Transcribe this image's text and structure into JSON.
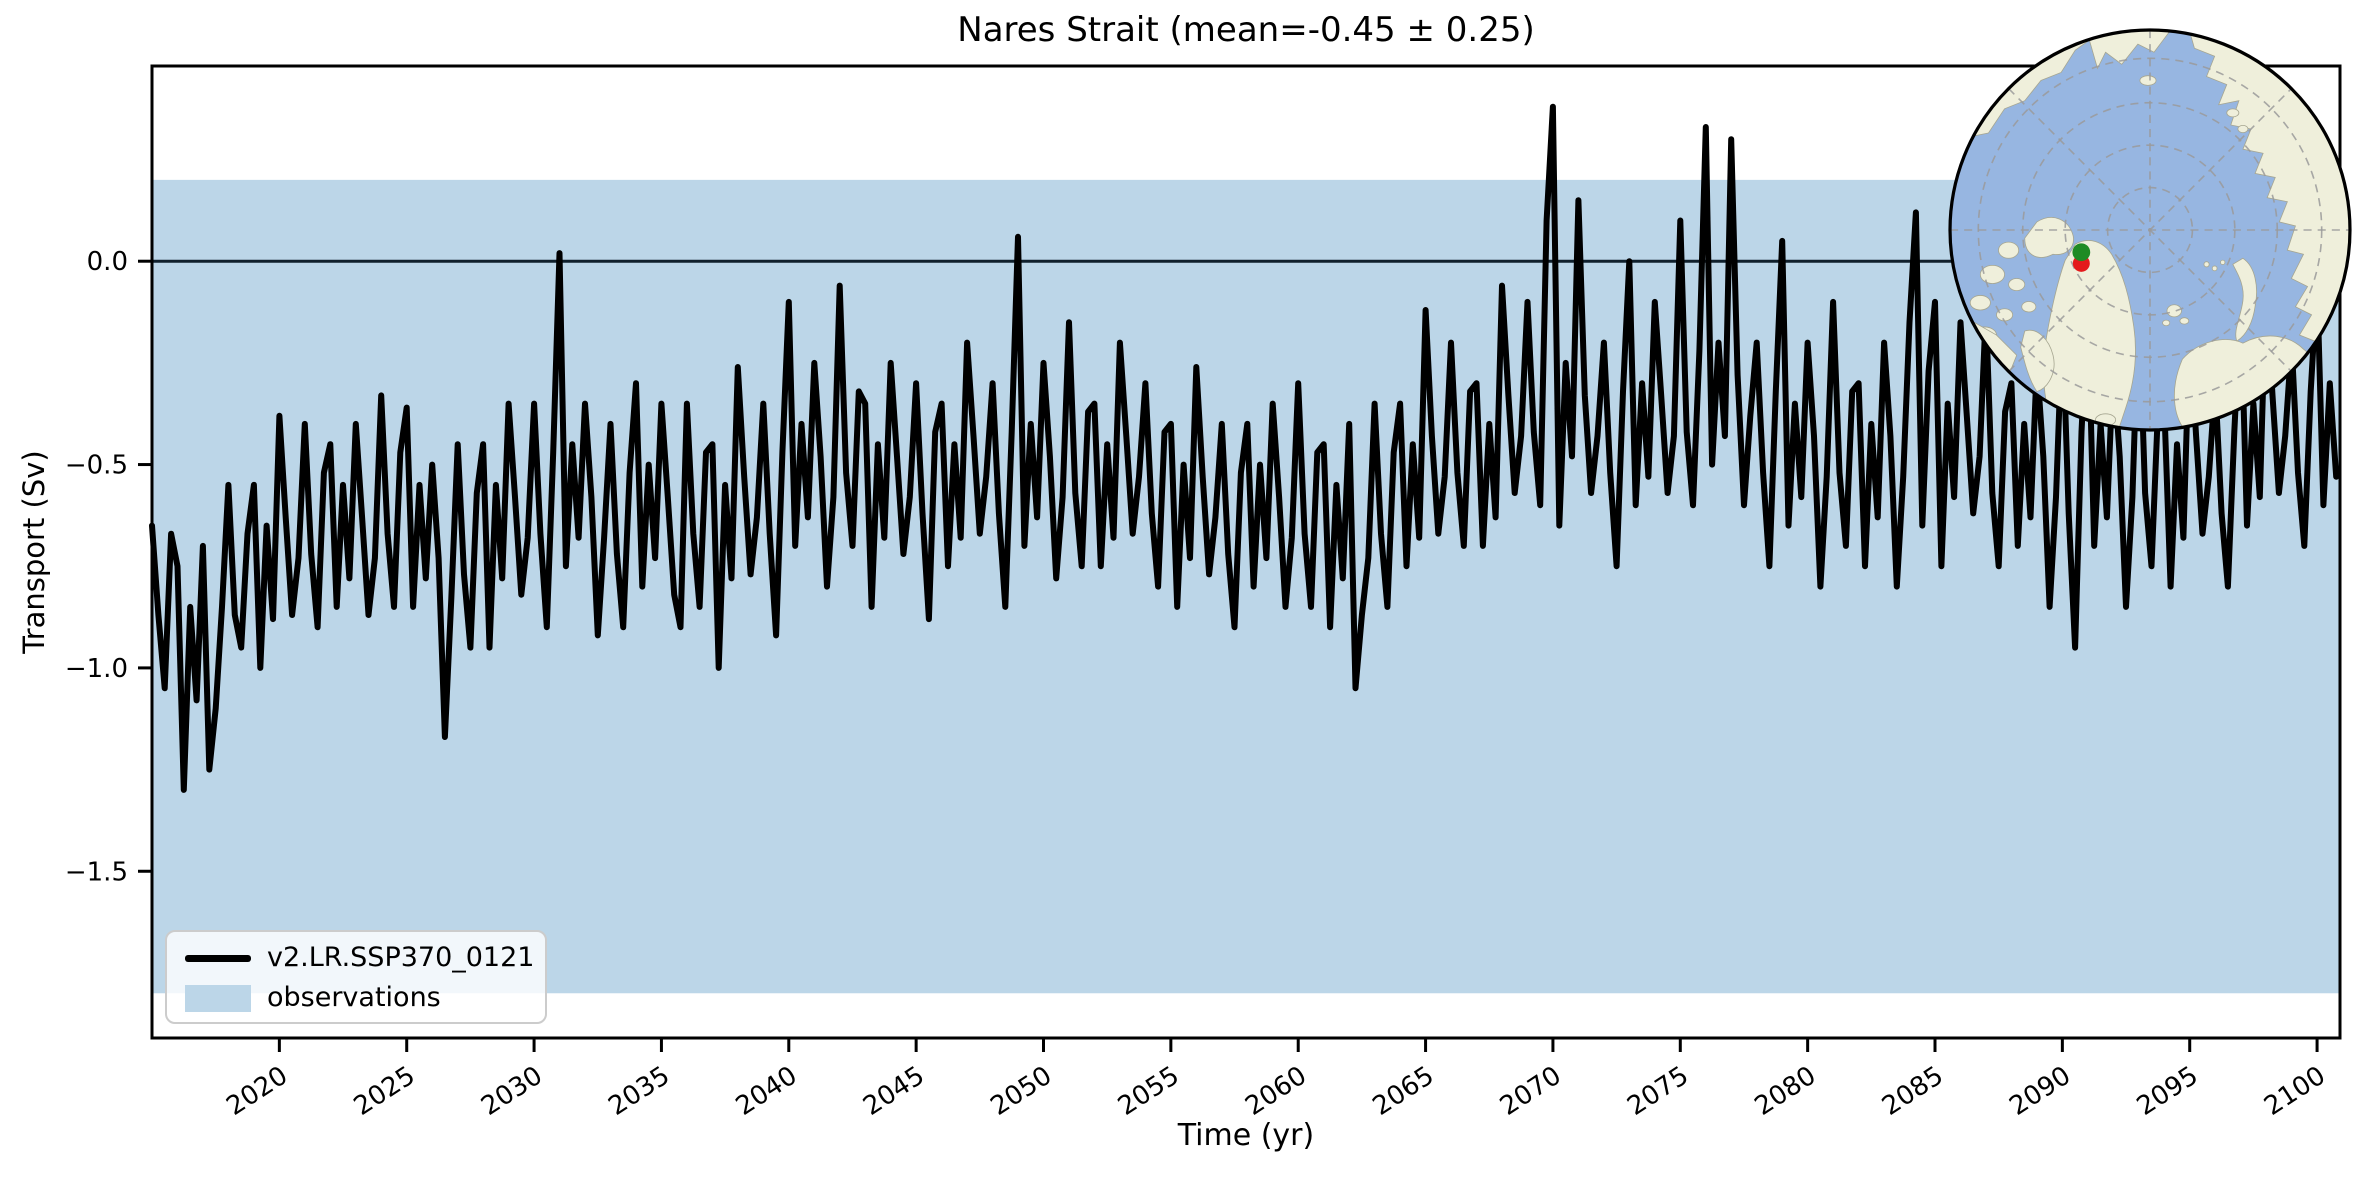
{
  "title": "Nares Strait (mean=-0.45 ± 0.25)",
  "colors": {
    "band": "#bcd6e8",
    "series": "#000000",
    "zero_line": "#10202c",
    "axis": "#000000",
    "text": "#000000",
    "legend_bg": "rgba(255,255,255,0.8)",
    "legend_border": "#cccccc",
    "map_ocean": "#97b6e1",
    "map_land": "#efefdb",
    "map_grid": "#9a9a9a",
    "marker_green": "#1f8b24",
    "marker_red": "#e41a1c"
  },
  "legend": {
    "series_label": "v2.LR.SSP370_0121",
    "band_label": "observations",
    "position": "lower left"
  },
  "inset_map": {
    "description": "Arctic polar stereographic locator map with Nares Strait marked",
    "marker_green": "#1f8b24",
    "marker_red": "#e41a1c"
  },
  "chart_data": {
    "type": "line",
    "title": "Nares Strait (mean=-0.45 ± 0.25)",
    "xlabel": "Time (yr)",
    "ylabel": "Transport (Sv)",
    "xlim": [
      2015.0,
      2100.9
    ],
    "ylim": [
      -1.91,
      0.48
    ],
    "grid": false,
    "x_ticks": [
      2020,
      2025,
      2030,
      2035,
      2040,
      2045,
      2050,
      2055,
      2060,
      2065,
      2070,
      2075,
      2080,
      2085,
      2090,
      2095,
      2100
    ],
    "x_tick_rotation": 33,
    "y_ticks": [
      0.0,
      -0.5,
      -1.0,
      -1.5
    ],
    "y_tick_labels": [
      "0.0",
      "−0.5",
      "−1.0",
      "−1.5"
    ],
    "zero_line": 0.0,
    "band": {
      "label": "observations",
      "ymin": -1.8,
      "ymax": 0.2
    },
    "series": [
      {
        "name": "v2.LR.SSP370_0121",
        "x_start": 2015.0,
        "x_step": 0.25,
        "values": [
          -0.65,
          -0.87,
          -1.05,
          -0.67,
          -0.75,
          -1.3,
          -0.85,
          -1.08,
          -0.7,
          -1.25,
          -1.1,
          -0.85,
          -0.55,
          -0.87,
          -0.95,
          -0.67,
          -0.55,
          -1.0,
          -0.65,
          -0.88,
          -0.38,
          -0.63,
          -0.87,
          -0.73,
          -0.4,
          -0.72,
          -0.9,
          -0.52,
          -0.45,
          -0.85,
          -0.55,
          -0.78,
          -0.4,
          -0.63,
          -0.87,
          -0.73,
          -0.33,
          -0.67,
          -0.85,
          -0.47,
          -0.36,
          -0.85,
          -0.55,
          -0.78,
          -0.5,
          -0.73,
          -1.17,
          -0.83,
          -0.45,
          -0.77,
          -0.95,
          -0.57,
          -0.45,
          -0.95,
          -0.55,
          -0.78,
          -0.35,
          -0.58,
          -0.82,
          -0.68,
          -0.35,
          -0.67,
          -0.9,
          -0.47,
          0.02,
          -0.75,
          -0.45,
          -0.68,
          -0.35,
          -0.58,
          -0.92,
          -0.68,
          -0.4,
          -0.72,
          -0.9,
          -0.52,
          -0.3,
          -0.8,
          -0.5,
          -0.73,
          -0.35,
          -0.58,
          -0.82,
          -0.9,
          -0.35,
          -0.67,
          -0.85,
          -0.47,
          -0.45,
          -1.0,
          -0.55,
          -0.78,
          -0.26,
          -0.53,
          -0.77,
          -0.63,
          -0.35,
          -0.67,
          -0.92,
          -0.47,
          -0.1,
          -0.7,
          -0.4,
          -0.63,
          -0.25,
          -0.48,
          -0.8,
          -0.58,
          -0.06,
          -0.52,
          -0.7,
          -0.32,
          -0.35,
          -0.85,
          -0.45,
          -0.68,
          -0.25,
          -0.48,
          -0.72,
          -0.58,
          -0.3,
          -0.62,
          -0.88,
          -0.42,
          -0.35,
          -0.75,
          -0.45,
          -0.68,
          -0.2,
          -0.43,
          -0.67,
          -0.53,
          -0.3,
          -0.62,
          -0.85,
          -0.42,
          0.06,
          -0.7,
          -0.4,
          -0.63,
          -0.25,
          -0.48,
          -0.78,
          -0.58,
          -0.15,
          -0.57,
          -0.75,
          -0.37,
          -0.35,
          -0.75,
          -0.45,
          -0.68,
          -0.2,
          -0.43,
          -0.67,
          -0.53,
          -0.3,
          -0.62,
          -0.8,
          -0.42,
          -0.4,
          -0.85,
          -0.5,
          -0.73,
          -0.26,
          -0.53,
          -0.77,
          -0.63,
          -0.4,
          -0.72,
          -0.9,
          -0.52,
          -0.4,
          -0.8,
          -0.5,
          -0.73,
          -0.35,
          -0.58,
          -0.85,
          -0.68,
          -0.3,
          -0.67,
          -0.85,
          -0.47,
          -0.45,
          -0.9,
          -0.55,
          -0.78,
          -0.4,
          -1.05,
          -0.87,
          -0.73,
          -0.35,
          -0.67,
          -0.85,
          -0.47,
          -0.35,
          -0.75,
          -0.45,
          -0.68,
          -0.12,
          -0.43,
          -0.67,
          -0.53,
          -0.2,
          -0.52,
          -0.7,
          -0.32,
          -0.3,
          -0.7,
          -0.4,
          -0.63,
          -0.06,
          -0.33,
          -0.57,
          -0.43,
          -0.1,
          -0.42,
          -0.6,
          0.1,
          0.38,
          -0.65,
          -0.25,
          -0.48,
          0.15,
          -0.33,
          -0.57,
          -0.43,
          -0.2,
          -0.52,
          -0.75,
          -0.32,
          0.0,
          -0.6,
          -0.3,
          -0.53,
          -0.1,
          -0.33,
          -0.57,
          -0.43,
          0.1,
          -0.42,
          -0.6,
          -0.22,
          0.33,
          -0.5,
          -0.2,
          -0.43,
          0.3,
          -0.28,
          -0.6,
          -0.38,
          -0.2,
          -0.52,
          -0.75,
          -0.32,
          0.05,
          -0.65,
          -0.35,
          -0.58,
          -0.2,
          -0.43,
          -0.8,
          -0.53,
          -0.1,
          -0.52,
          -0.7,
          -0.32,
          -0.3,
          -0.75,
          -0.4,
          -0.63,
          -0.2,
          -0.43,
          -0.8,
          -0.53,
          -0.15,
          0.12,
          -0.65,
          -0.27,
          -0.1,
          -0.75,
          -0.35,
          -0.58,
          -0.15,
          -0.38,
          -0.62,
          -0.48,
          -0.12,
          -0.57,
          -0.75,
          -0.37,
          -0.3,
          -0.7,
          -0.4,
          -0.63,
          -0.25,
          -0.48,
          -0.85,
          -0.58,
          -0.15,
          -0.62,
          -0.95,
          -0.42,
          -0.1,
          -0.7,
          -0.4,
          -0.63,
          -0.25,
          -0.48,
          -0.85,
          -0.58,
          -0.1,
          -0.57,
          -0.75,
          -0.37,
          -0.35,
          -0.8,
          -0.45,
          -0.68,
          -0.16,
          -0.43,
          -0.67,
          -0.53,
          -0.3,
          -0.62,
          -0.8,
          -0.42,
          -0.1,
          -0.65,
          -0.35,
          -0.58,
          -0.06,
          -0.33,
          -0.57,
          -0.43,
          -0.2,
          -0.52,
          -0.7,
          -0.32,
          -0.05,
          -0.6,
          -0.3,
          -0.53
        ]
      }
    ],
    "legend_entries": [
      "v2.LR.SSP370_0121",
      "observations"
    ]
  }
}
